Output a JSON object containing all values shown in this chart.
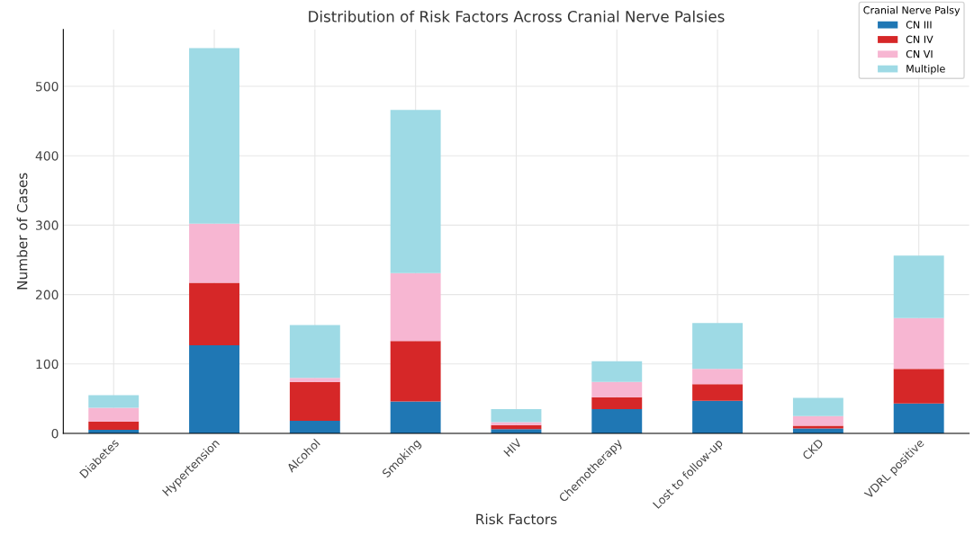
{
  "chart_data": {
    "type": "bar",
    "stacked": true,
    "title": "Distribution of Risk Factors Across Cranial Nerve Palsies",
    "xlabel": "Risk Factors",
    "ylabel": "Number of Cases",
    "legend_title": "Cranial Nerve Palsy",
    "legend": "top right",
    "grid": true,
    "categories": [
      "Diabetes",
      "Hypertension",
      "Alcohol",
      "Smoking",
      "HIV",
      "Chemotherapy",
      "Lost to follow-up",
      "CKD",
      "VDRL positive"
    ],
    "series": [
      {
        "name": "CN III",
        "color": "#1f77b4",
        "values": [
          5,
          127,
          18,
          46,
          6,
          35,
          47,
          7,
          43
        ]
      },
      {
        "name": "CN IV",
        "color": "#d62728",
        "values": [
          12,
          90,
          56,
          87,
          6,
          17,
          24,
          4,
          50
        ]
      },
      {
        "name": "CN VI",
        "color": "#f7b6d2",
        "values": [
          20,
          85,
          6,
          98,
          4,
          22,
          22,
          14,
          73
        ]
      },
      {
        "name": "Multiple",
        "color": "#9edae5",
        "values": [
          18,
          253,
          76,
          235,
          19,
          30,
          66,
          26,
          90
        ]
      }
    ],
    "ylim": [
      0,
      582
    ],
    "yticks": [
      0,
      100,
      200,
      300,
      400,
      500
    ]
  }
}
